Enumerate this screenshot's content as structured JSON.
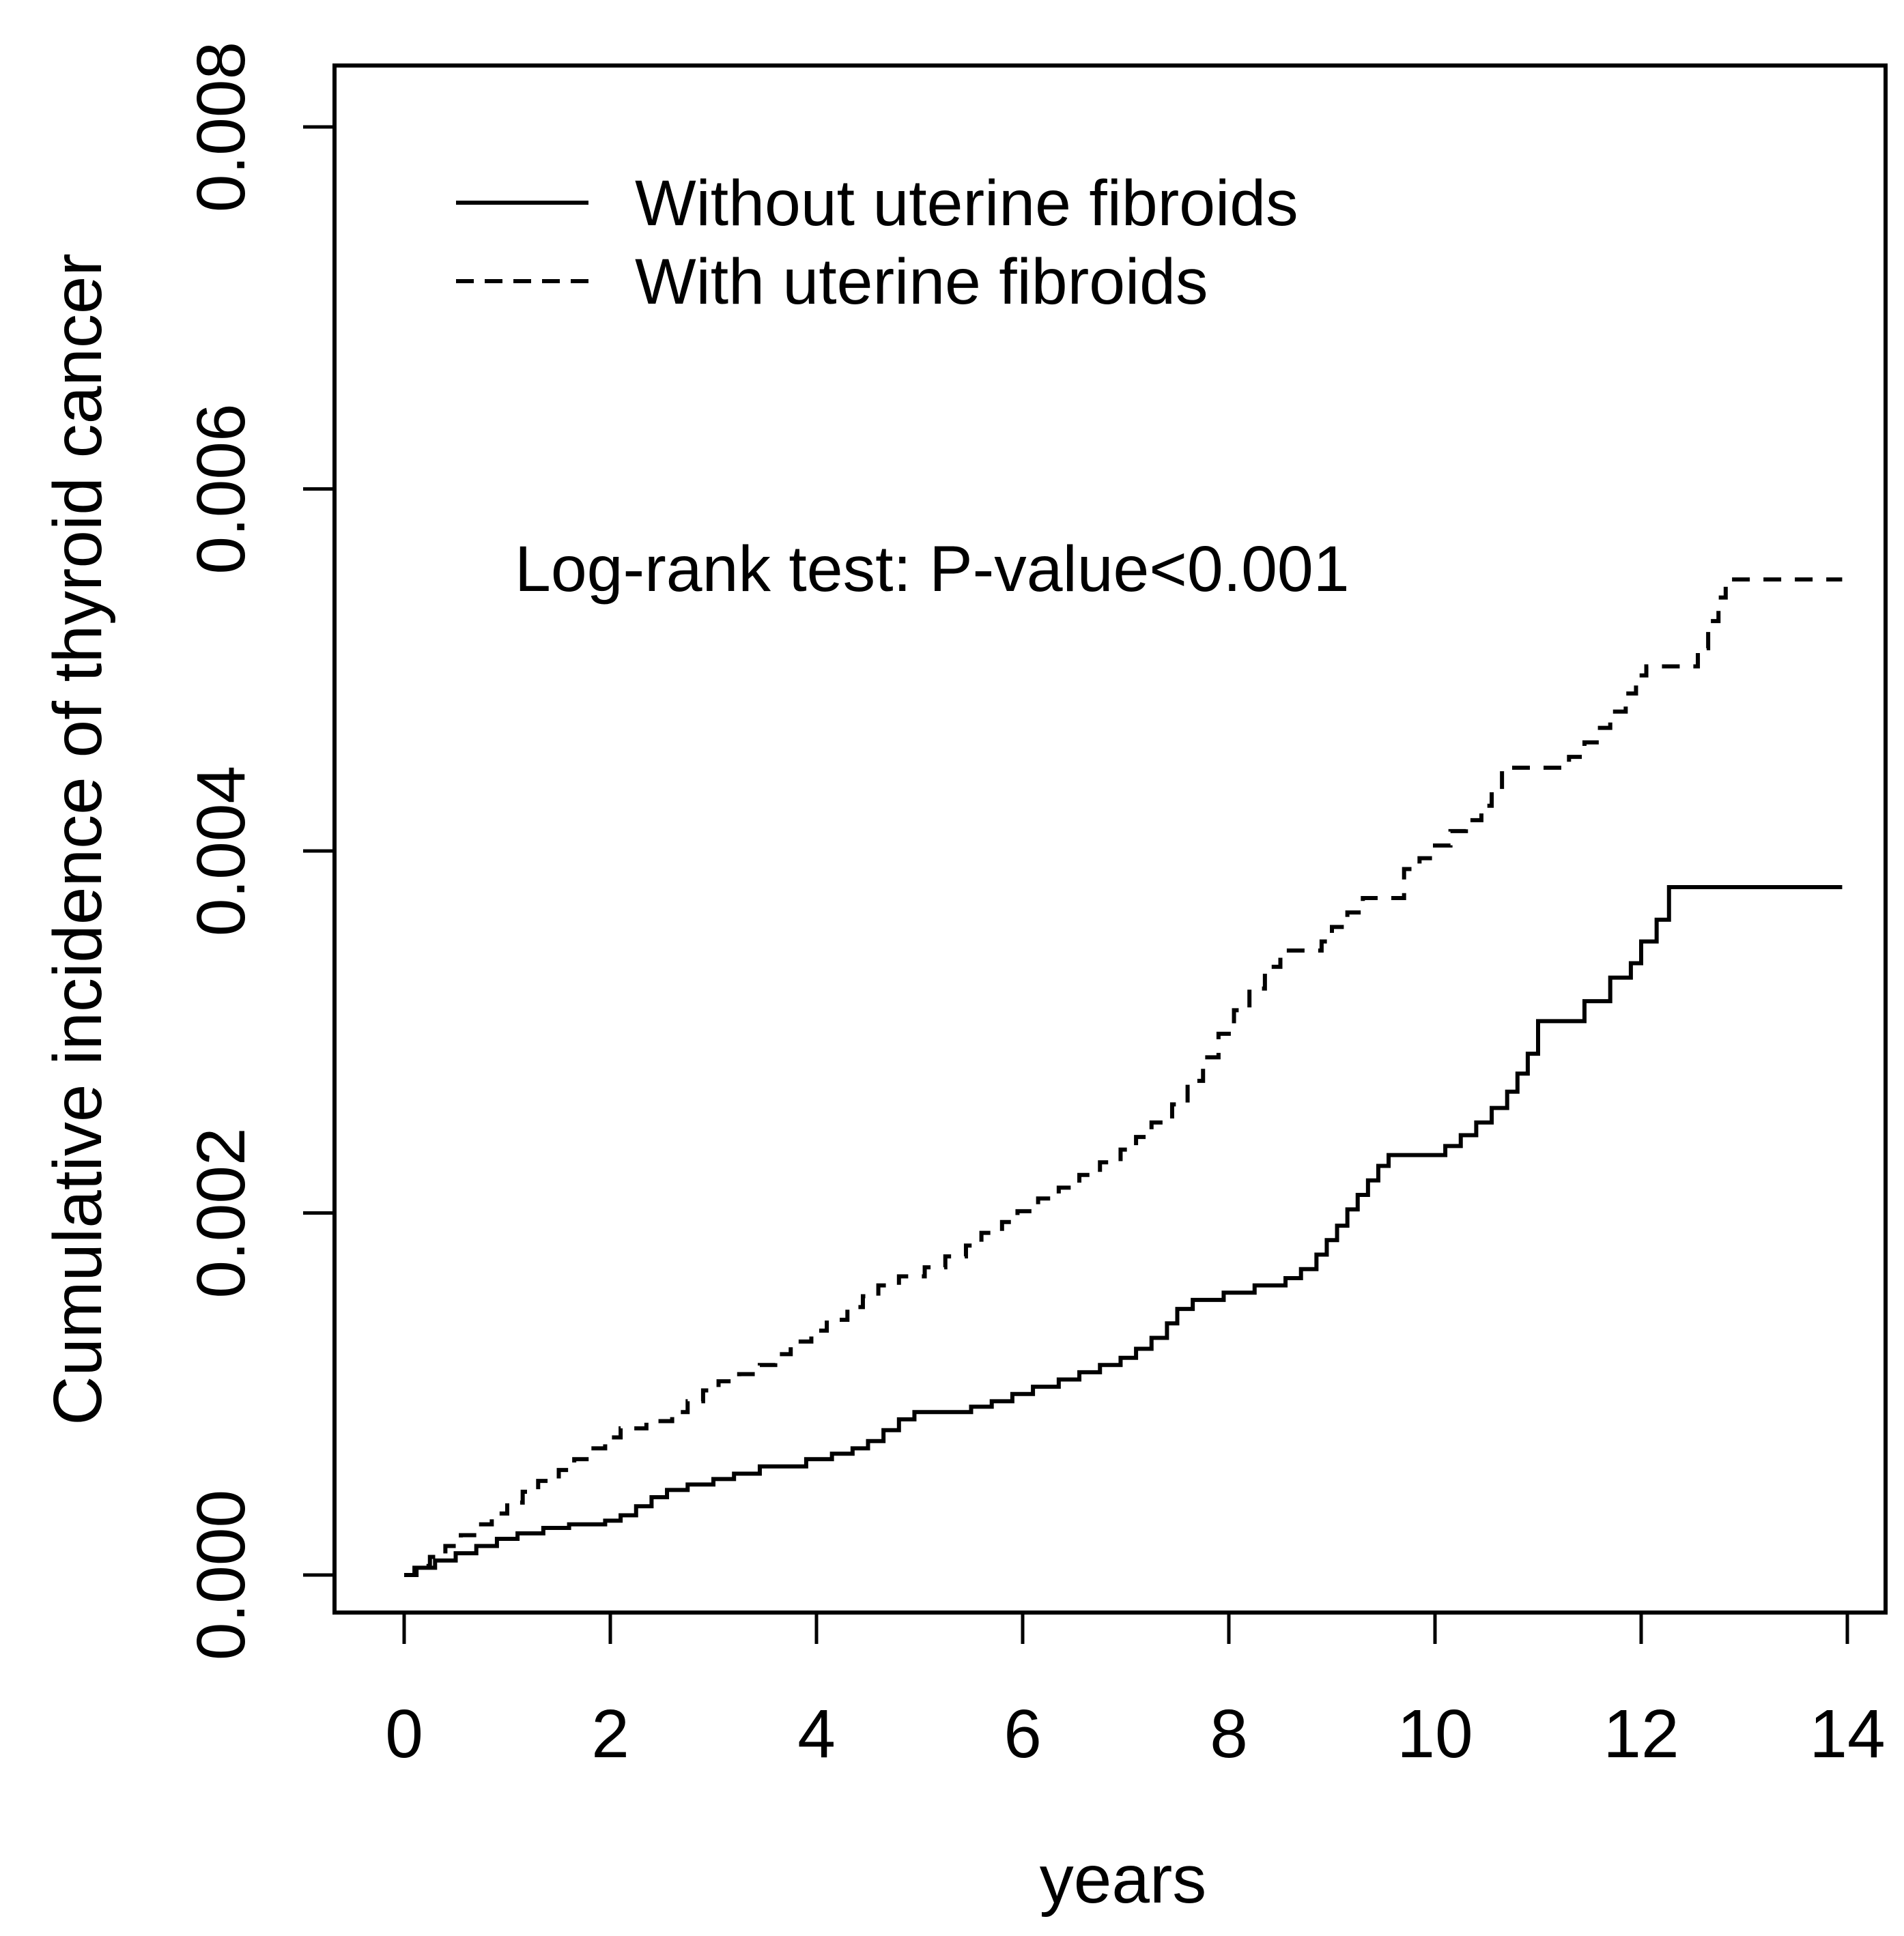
{
  "figure": {
    "background_color": "#ffffff",
    "foreground_color": "#000000"
  },
  "chart_data": {
    "type": "line",
    "subtype": "kaplan-meier-cumulative-incidence-step",
    "title": "",
    "xlabel": "years",
    "ylabel": "Cumulative incidence of thyroid cancer",
    "xlim": [
      0,
      14
    ],
    "ylim": [
      0,
      0.008
    ],
    "grid": false,
    "x_ticks": [
      0,
      2,
      4,
      6,
      8,
      10,
      12,
      14
    ],
    "y_tick_values": [
      0,
      0.002,
      0.004,
      0.006,
      0.008
    ],
    "y_tick_labels": [
      "0.000",
      "0.002",
      "0.004",
      "0.006",
      "0.008"
    ],
    "annotation": "Log-rank test: P-value<0.001",
    "legend_position": "top-left-inside",
    "series": [
      {
        "name": "Without uterine fibroids",
        "line_style": "solid",
        "color": "#000000",
        "points": [
          [
            0,
            0
          ],
          [
            0.1,
            4e-05
          ],
          [
            0.3,
            8e-05
          ],
          [
            0.5,
            0.00012
          ],
          [
            0.7,
            0.00016
          ],
          [
            0.9,
            0.0002
          ],
          [
            1.1,
            0.00023
          ],
          [
            1.35,
            0.00026
          ],
          [
            1.6,
            0.00028
          ],
          [
            1.95,
            0.0003
          ],
          [
            2.1,
            0.00033
          ],
          [
            2.25,
            0.00038
          ],
          [
            2.4,
            0.00043
          ],
          [
            2.55,
            0.00047
          ],
          [
            2.75,
            0.0005
          ],
          [
            3.0,
            0.00053
          ],
          [
            3.2,
            0.00056
          ],
          [
            3.45,
            0.0006
          ],
          [
            3.9,
            0.00064
          ],
          [
            4.15,
            0.00067
          ],
          [
            4.35,
            0.0007
          ],
          [
            4.5,
            0.00074
          ],
          [
            4.65,
            0.0008
          ],
          [
            4.8,
            0.00086
          ],
          [
            4.95,
            0.0009
          ],
          [
            5.5,
            0.00093
          ],
          [
            5.7,
            0.00096
          ],
          [
            5.9,
            0.001
          ],
          [
            6.1,
            0.00104
          ],
          [
            6.35,
            0.00108
          ],
          [
            6.55,
            0.00112
          ],
          [
            6.75,
            0.00116
          ],
          [
            6.95,
            0.0012
          ],
          [
            7.1,
            0.00125
          ],
          [
            7.25,
            0.00131
          ],
          [
            7.4,
            0.00139
          ],
          [
            7.5,
            0.00147
          ],
          [
            7.65,
            0.00152
          ],
          [
            7.95,
            0.00156
          ],
          [
            8.25,
            0.0016
          ],
          [
            8.55,
            0.00164
          ],
          [
            8.7,
            0.00169
          ],
          [
            8.85,
            0.00177
          ],
          [
            8.95,
            0.00185
          ],
          [
            9.05,
            0.00193
          ],
          [
            9.15,
            0.00202
          ],
          [
            9.25,
            0.0021
          ],
          [
            9.35,
            0.00218
          ],
          [
            9.45,
            0.00226
          ],
          [
            9.55,
            0.00232
          ],
          [
            10.1,
            0.00237
          ],
          [
            10.25,
            0.00243
          ],
          [
            10.4,
            0.0025
          ],
          [
            10.55,
            0.00258
          ],
          [
            10.7,
            0.00267
          ],
          [
            10.8,
            0.00277
          ],
          [
            10.9,
            0.00288
          ],
          [
            11.0,
            0.00306
          ],
          [
            11.45,
            0.00317
          ],
          [
            11.7,
            0.0033
          ],
          [
            11.9,
            0.00338
          ],
          [
            12.0,
            0.0035
          ],
          [
            12.15,
            0.00362
          ],
          [
            12.27,
            0.0038
          ],
          [
            13.95,
            0.0038
          ]
        ]
      },
      {
        "name": "With uterine fibroids",
        "line_style": "dashed",
        "color": "#000000",
        "points": [
          [
            0,
            0
          ],
          [
            0.12,
            5e-05
          ],
          [
            0.25,
            0.0001
          ],
          [
            0.4,
            0.00016
          ],
          [
            0.55,
            0.00022
          ],
          [
            0.7,
            0.00028
          ],
          [
            0.85,
            0.00034
          ],
          [
            1.0,
            0.0004
          ],
          [
            1.15,
            0.00046
          ],
          [
            1.3,
            0.00052
          ],
          [
            1.5,
            0.00058
          ],
          [
            1.65,
            0.00064
          ],
          [
            1.8,
            0.0007
          ],
          [
            1.95,
            0.00076
          ],
          [
            2.1,
            0.00081
          ],
          [
            2.35,
            0.00085
          ],
          [
            2.6,
            0.0009
          ],
          [
            2.75,
            0.00096
          ],
          [
            2.9,
            0.00102
          ],
          [
            3.05,
            0.00107
          ],
          [
            3.25,
            0.00111
          ],
          [
            3.45,
            0.00116
          ],
          [
            3.6,
            0.00122
          ],
          [
            3.75,
            0.00129
          ],
          [
            3.95,
            0.00135
          ],
          [
            4.1,
            0.00141
          ],
          [
            4.3,
            0.00148
          ],
          [
            4.45,
            0.00154
          ],
          [
            4.6,
            0.0016
          ],
          [
            4.8,
            0.00165
          ],
          [
            5.05,
            0.0017
          ],
          [
            5.25,
            0.00176
          ],
          [
            5.45,
            0.00182
          ],
          [
            5.6,
            0.00189
          ],
          [
            5.8,
            0.00195
          ],
          [
            5.95,
            0.00201
          ],
          [
            6.15,
            0.00208
          ],
          [
            6.35,
            0.00214
          ],
          [
            6.55,
            0.00221
          ],
          [
            6.75,
            0.00228
          ],
          [
            6.95,
            0.00235
          ],
          [
            7.1,
            0.00242
          ],
          [
            7.25,
            0.0025
          ],
          [
            7.45,
            0.0026
          ],
          [
            7.6,
            0.00273
          ],
          [
            7.75,
            0.00286
          ],
          [
            7.9,
            0.00299
          ],
          [
            8.05,
            0.00312
          ],
          [
            8.2,
            0.00324
          ],
          [
            8.35,
            0.00336
          ],
          [
            8.5,
            0.00345
          ],
          [
            8.9,
            0.0035
          ],
          [
            9.0,
            0.00358
          ],
          [
            9.15,
            0.00366
          ],
          [
            9.3,
            0.00374
          ],
          [
            9.7,
            0.0039
          ],
          [
            9.85,
            0.00396
          ],
          [
            10.0,
            0.00403
          ],
          [
            10.15,
            0.00411
          ],
          [
            10.3,
            0.00417
          ],
          [
            10.45,
            0.00425
          ],
          [
            10.55,
            0.00434
          ],
          [
            10.65,
            0.00446
          ],
          [
            11.3,
            0.00452
          ],
          [
            11.45,
            0.0046
          ],
          [
            11.6,
            0.00468
          ],
          [
            11.7,
            0.00477
          ],
          [
            11.85,
            0.00487
          ],
          [
            11.95,
            0.00497
          ],
          [
            12.05,
            0.00502
          ],
          [
            12.55,
            0.00512
          ],
          [
            12.65,
            0.00527
          ],
          [
            12.75,
            0.0054
          ],
          [
            12.82,
            0.0055
          ],
          [
            13.95,
            0.0055
          ]
        ]
      }
    ]
  }
}
